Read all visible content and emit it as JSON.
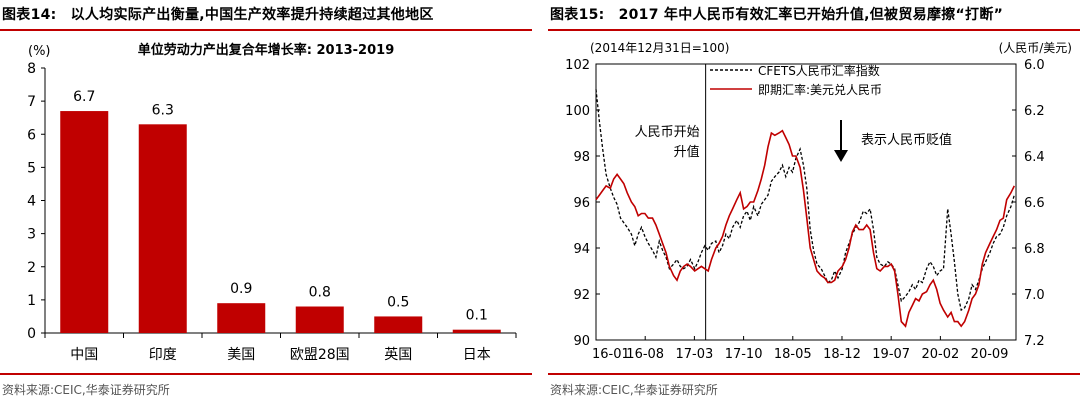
{
  "left": {
    "fig_title_num": "图表14:",
    "fig_title_text": "以人均实际产出衡量,中国生产效率提升持续超过其他地区",
    "source": "资料来源:CEIC,华泰证券研究所"
  },
  "right": {
    "fig_title_num": "图表15:",
    "fig_title_text": "2017 年中人民币有效汇率已开始升值,但被贸易摩擦“打断”",
    "source": "资料来源:CEIC,华泰证券研究所"
  },
  "colors": {
    "accent": "#c00000",
    "bar": "#c00000",
    "dashed": "#000000"
  },
  "chart_data": [
    {
      "type": "bar",
      "title": "单位劳动力产出复合年增长率: 2013-2019",
      "ylabel": "(%)",
      "ylim": [
        0,
        8
      ],
      "yticks": [
        0,
        1,
        2,
        3,
        4,
        5,
        6,
        7,
        8
      ],
      "categories": [
        "中国",
        "印度",
        "美国",
        "欧盟28国",
        "英国",
        "日本"
      ],
      "values": [
        6.7,
        6.3,
        0.9,
        0.8,
        0.5,
        0.1
      ],
      "value_labels": [
        "6.7",
        "6.3",
        "0.9",
        "0.8",
        "0.5",
        "0.1"
      ],
      "grid": false
    },
    {
      "type": "line",
      "subtitle_left": "(2014年12月31日=100)",
      "subtitle_right": "(人民币/美元)",
      "x_tick_labels": [
        "16-01",
        "16-08",
        "17-03",
        "17-10",
        "18-05",
        "18-12",
        "19-07",
        "20-02",
        "20-09"
      ],
      "x_range": [
        "2016-01",
        "2020-12"
      ],
      "y_left": {
        "range": [
          90,
          102
        ],
        "ticks": [
          90,
          92,
          94,
          96,
          98,
          100,
          102
        ]
      },
      "y_right": {
        "range": [
          7.2,
          6.0
        ],
        "ticks": [
          "6.0",
          "6.2",
          "6.4",
          "6.6",
          "6.8",
          "7.0",
          "7.2"
        ],
        "inverted": true
      },
      "series": [
        {
          "name": "CFETS人民币汇率指数",
          "axis": "left",
          "style": "dashed",
          "color": "#000000",
          "x": [
            2016.0,
            2016.04,
            2016.08,
            2016.12,
            2016.17,
            2016.21,
            2016.25,
            2016.29,
            2016.33,
            2016.37,
            2016.42,
            2016.46,
            2016.5,
            2016.54,
            2016.58,
            2016.62,
            2016.67,
            2016.71,
            2016.75,
            2016.79,
            2016.83,
            2016.87,
            2016.92,
            2016.96,
            2017.0,
            2017.04,
            2017.08,
            2017.12,
            2017.17,
            2017.21,
            2017.25,
            2017.29,
            2017.33,
            2017.37,
            2017.42,
            2017.46,
            2017.5,
            2017.54,
            2017.58,
            2017.62,
            2017.67,
            2017.71,
            2017.75,
            2017.79,
            2017.83,
            2017.87,
            2017.92,
            2017.96,
            2018.0,
            2018.04,
            2018.08,
            2018.12,
            2018.17,
            2018.21,
            2018.25,
            2018.29,
            2018.33,
            2018.37,
            2018.42,
            2018.46,
            2018.5,
            2018.54,
            2018.58,
            2018.62,
            2018.67,
            2018.71,
            2018.75,
            2018.79,
            2018.83,
            2018.87,
            2018.92,
            2018.96,
            2019.0,
            2019.04,
            2019.08,
            2019.12,
            2019.17,
            2019.21,
            2019.25,
            2019.29,
            2019.33,
            2019.37,
            2019.42,
            2019.46,
            2019.5,
            2019.54,
            2019.58,
            2019.62,
            2019.67,
            2019.71,
            2019.75,
            2019.79,
            2019.83,
            2019.87,
            2019.92,
            2019.96,
            2020.0,
            2020.04,
            2020.08,
            2020.12,
            2020.17,
            2020.21,
            2020.25,
            2020.29,
            2020.33,
            2020.37,
            2020.42,
            2020.46,
            2020.5,
            2020.54,
            2020.58,
            2020.62,
            2020.67,
            2020.71,
            2020.75,
            2020.79,
            2020.83,
            2020.87,
            2020.92,
            2020.96
          ],
          "values": [
            100.9,
            99.5,
            98.3,
            97.2,
            96.6,
            96.2,
            95.9,
            95.3,
            95.1,
            94.9,
            94.6,
            94.1,
            94.6,
            94.9,
            94.5,
            94.2,
            93.9,
            93.6,
            94.3,
            93.9,
            93.6,
            93.1,
            93.3,
            93.5,
            93.2,
            93.1,
            93.2,
            93.5,
            93.1,
            93.4,
            93.8,
            94.1,
            93.9,
            94.2,
            94.3,
            93.8,
            94.1,
            94.6,
            94.4,
            94.9,
            95.2,
            94.9,
            95.4,
            95.6,
            95.2,
            95.8,
            95.4,
            95.9,
            96.1,
            96.3,
            96.9,
            97.1,
            97.3,
            97.6,
            97.1,
            97.5,
            97.3,
            97.9,
            98.3,
            97.6,
            96.6,
            94.8,
            93.9,
            93.3,
            93.1,
            92.8,
            92.5,
            92.6,
            93.0,
            92.7,
            93.1,
            93.8,
            94.2,
            94.6,
            94.9,
            95.1,
            95.6,
            95.5,
            95.7,
            94.8,
            93.6,
            93.3,
            93.2,
            93.4,
            93.3,
            93.1,
            92.4,
            91.7,
            91.9,
            92.1,
            92.4,
            92.2,
            92.6,
            92.5,
            93.1,
            93.4,
            93.2,
            92.8,
            93.0,
            93.1,
            95.7,
            94.6,
            93.4,
            92.0,
            91.3,
            91.4,
            91.8,
            92.4,
            92.2,
            92.6,
            93.1,
            93.4,
            93.8,
            94.2,
            94.5,
            94.6,
            94.9,
            95.4,
            95.8,
            96.3
          ]
        },
        {
          "name": "即期汇率:美元兑人民币",
          "axis": "right",
          "style": "solid",
          "color": "#c00000",
          "x": [
            2016.0,
            2016.04,
            2016.08,
            2016.12,
            2016.17,
            2016.21,
            2016.25,
            2016.29,
            2016.33,
            2016.37,
            2016.42,
            2016.46,
            2016.5,
            2016.54,
            2016.58,
            2016.62,
            2016.67,
            2016.71,
            2016.75,
            2016.79,
            2016.83,
            2016.87,
            2016.92,
            2016.96,
            2017.0,
            2017.04,
            2017.08,
            2017.12,
            2017.17,
            2017.21,
            2017.25,
            2017.29,
            2017.33,
            2017.37,
            2017.42,
            2017.46,
            2017.5,
            2017.54,
            2017.58,
            2017.62,
            2017.67,
            2017.71,
            2017.75,
            2017.79,
            2017.83,
            2017.87,
            2017.92,
            2017.96,
            2018.0,
            2018.04,
            2018.08,
            2018.12,
            2018.17,
            2018.21,
            2018.25,
            2018.29,
            2018.33,
            2018.37,
            2018.42,
            2018.46,
            2018.5,
            2018.54,
            2018.58,
            2018.62,
            2018.67,
            2018.71,
            2018.75,
            2018.79,
            2018.83,
            2018.87,
            2018.92,
            2018.96,
            2019.0,
            2019.04,
            2019.08,
            2019.12,
            2019.17,
            2019.21,
            2019.25,
            2019.29,
            2019.33,
            2019.37,
            2019.42,
            2019.46,
            2019.5,
            2019.54,
            2019.58,
            2019.62,
            2019.67,
            2019.71,
            2019.75,
            2019.79,
            2019.83,
            2019.87,
            2019.92,
            2019.96,
            2020.0,
            2020.04,
            2020.08,
            2020.12,
            2020.17,
            2020.21,
            2020.25,
            2020.29,
            2020.33,
            2020.37,
            2020.42,
            2020.46,
            2020.5,
            2020.54,
            2020.58,
            2020.62,
            2020.67,
            2020.71,
            2020.75,
            2020.79,
            2020.83,
            2020.87,
            2020.92,
            2020.96
          ],
          "values": [
            6.59,
            6.57,
            6.55,
            6.53,
            6.54,
            6.5,
            6.48,
            6.5,
            6.52,
            6.56,
            6.6,
            6.62,
            6.66,
            6.65,
            6.65,
            6.67,
            6.67,
            6.7,
            6.74,
            6.78,
            6.82,
            6.88,
            6.92,
            6.94,
            6.9,
            6.88,
            6.87,
            6.88,
            6.9,
            6.89,
            6.88,
            6.89,
            6.9,
            6.85,
            6.8,
            6.78,
            6.75,
            6.7,
            6.66,
            6.63,
            6.59,
            6.56,
            6.63,
            6.62,
            6.6,
            6.6,
            6.55,
            6.5,
            6.44,
            6.36,
            6.3,
            6.31,
            6.3,
            6.29,
            6.32,
            6.35,
            6.4,
            6.4,
            6.45,
            6.55,
            6.67,
            6.8,
            6.85,
            6.9,
            6.92,
            6.93,
            6.95,
            6.95,
            6.94,
            6.9,
            6.88,
            6.85,
            6.8,
            6.73,
            6.7,
            6.72,
            6.72,
            6.7,
            6.72,
            6.82,
            6.89,
            6.9,
            6.88,
            6.88,
            6.87,
            6.9,
            7.0,
            7.12,
            7.14,
            7.08,
            7.05,
            7.02,
            7.03,
            7.0,
            6.99,
            6.96,
            6.94,
            6.98,
            7.04,
            7.07,
            7.1,
            7.08,
            7.12,
            7.12,
            7.14,
            7.12,
            7.07,
            7.02,
            7.0,
            6.96,
            6.87,
            6.82,
            6.78,
            6.75,
            6.72,
            6.68,
            6.67,
            6.59,
            6.56,
            6.53
          ]
        }
      ],
      "annotations": [
        {
          "text_line1": "人民币开始",
          "text_line2": "升值",
          "at_x": 2017.3
        },
        {
          "text": "表示人民币贬值",
          "arrow": "down"
        }
      ]
    }
  ]
}
